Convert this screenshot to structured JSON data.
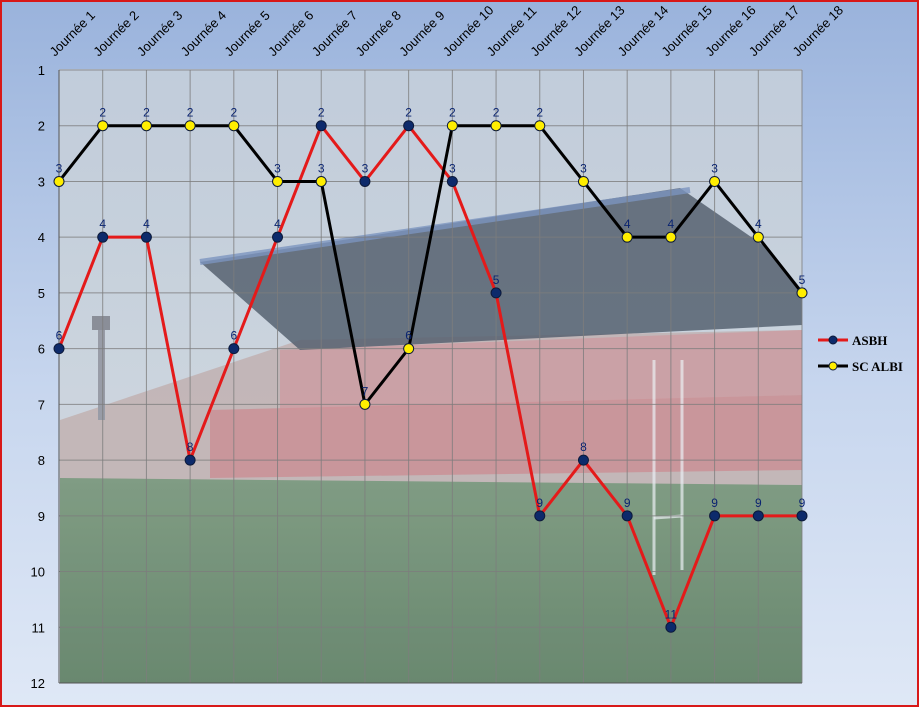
{
  "chart_data": {
    "type": "line",
    "title": "",
    "xlabel": "",
    "ylabel": "",
    "y_axis_inverted": true,
    "ylim": [
      1,
      12
    ],
    "y_ticks": [
      "1",
      "2",
      "3",
      "4",
      "5",
      "6",
      "7",
      "8",
      "9",
      "10",
      "11",
      "12"
    ],
    "grid": true,
    "legend_position": "right",
    "categories": [
      "Journée 1",
      "Journée 2",
      "Journée 3",
      "Journée 4",
      "Journée 5",
      "Journée 6",
      "Journée 7",
      "Journée 8",
      "Journée 9",
      "Journée 10",
      "Journée 11",
      "Journée 12",
      "Journée 13",
      "Journée 14",
      "Journée 15",
      "Journée 16",
      "Journée 17",
      "Journée 18"
    ],
    "series": [
      {
        "name": "ASBH",
        "line_color": "#e41a1a",
        "marker_color": "#0d2a6b",
        "values": [
          6,
          4,
          4,
          8,
          6,
          4,
          2,
          3,
          2,
          3,
          5,
          9,
          8,
          9,
          11,
          9,
          9,
          9
        ]
      },
      {
        "name": "SC ALBI",
        "line_color": "#000000",
        "marker_color": "#ffee00",
        "values": [
          3,
          2,
          2,
          2,
          2,
          3,
          3,
          7,
          6,
          2,
          2,
          2,
          3,
          4,
          4,
          3,
          4,
          5
        ]
      }
    ]
  }
}
